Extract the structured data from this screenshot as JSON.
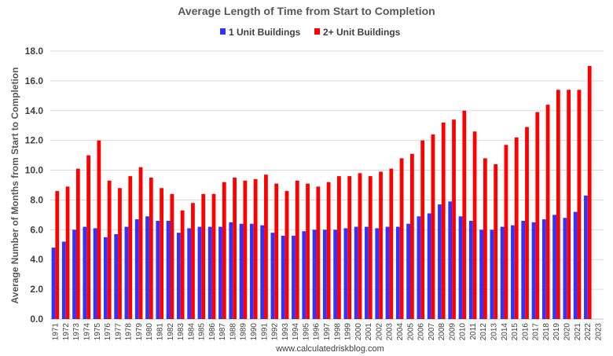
{
  "chart_data": {
    "type": "bar",
    "title": "Average Length of Time from Start to Completion",
    "ylabel": "Average Number of Months from Start to Completion",
    "source": "www.calculatedriskblog.com",
    "ylim": [
      0,
      18
    ],
    "yticks": [
      "0.0",
      "2.0",
      "4.0",
      "6.0",
      "8.0",
      "10.0",
      "12.0",
      "14.0",
      "16.0",
      "18.0"
    ],
    "grid": true,
    "legend_position": "top-center",
    "categories": [
      "1971",
      "1972",
      "1973",
      "1974",
      "1975",
      "1976",
      "1977",
      "1978",
      "1979",
      "1980",
      "1981",
      "1982",
      "1983",
      "1984",
      "1985",
      "1986",
      "1987",
      "1988",
      "1989",
      "1990",
      "1991",
      "1992",
      "1993",
      "1994",
      "1995",
      "1996",
      "1997",
      "1998",
      "1999",
      "2000",
      "2001",
      "2002",
      "2003",
      "2004",
      "2005",
      "2006",
      "2007",
      "2008",
      "2009",
      "2010",
      "2011",
      "2012",
      "2013",
      "2014",
      "2015",
      "2016",
      "2017",
      "2018",
      "2019",
      "2020",
      "2021",
      "2022",
      "2023"
    ],
    "series": [
      {
        "name": "1 Unit Buildings",
        "color": "#3333ff",
        "values": [
          4.8,
          5.2,
          6.0,
          6.2,
          6.1,
          5.5,
          5.7,
          6.2,
          6.7,
          6.9,
          6.6,
          6.6,
          5.8,
          6.1,
          6.2,
          6.2,
          6.2,
          6.5,
          6.4,
          6.4,
          6.3,
          5.8,
          5.6,
          5.6,
          5.9,
          6.0,
          6.0,
          6.0,
          6.1,
          6.2,
          6.2,
          6.1,
          6.2,
          6.2,
          6.4,
          6.9,
          7.1,
          7.7,
          7.9,
          6.9,
          6.6,
          6.0,
          6.0,
          6.2,
          6.3,
          6.6,
          6.5,
          6.7,
          7.0,
          6.8,
          7.2,
          8.3,
          null
        ]
      },
      {
        "name": "2+ Unit Buildings",
        "color": "#ff0000",
        "values": [
          8.6,
          8.9,
          10.1,
          11.0,
          12.0,
          9.3,
          8.8,
          9.6,
          10.2,
          9.5,
          8.8,
          8.4,
          7.3,
          7.8,
          8.4,
          8.4,
          9.2,
          9.5,
          9.3,
          9.4,
          9.7,
          9.1,
          8.6,
          9.3,
          9.1,
          8.9,
          9.2,
          9.6,
          9.6,
          9.8,
          9.6,
          9.9,
          10.1,
          10.8,
          11.1,
          12.0,
          12.4,
          13.2,
          13.4,
          14.0,
          12.6,
          10.8,
          10.4,
          11.7,
          12.2,
          12.9,
          13.9,
          14.4,
          15.4,
          15.4,
          15.4,
          17.0,
          null
        ]
      }
    ]
  }
}
